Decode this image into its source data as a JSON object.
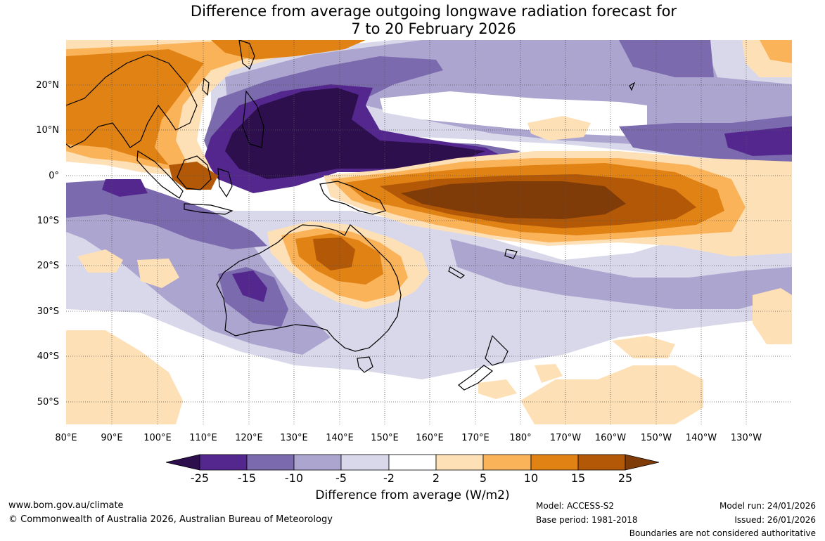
{
  "title": {
    "line1": "Difference from average outgoing longwave radiation forecast for",
    "line2": "7 to 20 February 2026"
  },
  "map": {
    "lon_labels": [
      "80°E",
      "90°E",
      "100°E",
      "110°E",
      "120°E",
      "130°E",
      "140°E",
      "150°E",
      "160°E",
      "170°E",
      "180°",
      "170°W",
      "160°W",
      "150°W",
      "140°W",
      "130°W"
    ],
    "lat_labels": [
      "20°N",
      "10°N",
      "0°",
      "10°S",
      "20°S",
      "30°S",
      "40°S",
      "50°S"
    ]
  },
  "colorbar": {
    "colors": [
      "#2d0f4e",
      "#54278f",
      "#7b6aae",
      "#aca5cf",
      "#d9d8ea",
      "#ffffff",
      "#fee0b6",
      "#fbb35a",
      "#e08214",
      "#b35806",
      "#7f3b08"
    ],
    "tick_labels": [
      "-25",
      "-15",
      "-10",
      "-5",
      "-2",
      "2",
      "5",
      "10",
      "15",
      "25"
    ],
    "title": "Difference from average (W/m2)"
  },
  "footer": {
    "website": "www.bom.gov.au/climate",
    "copyright": "© Commonwealth of Australia 2026, Australian Bureau of Meteorology",
    "model": "Model: ACCESS-S2",
    "base_period": "Base period: 1981-2018",
    "model_run": "Model run: 24/01/2026",
    "issued": "Issued: 26/01/2026",
    "disclaimer": "Boundaries are not considered authoritative"
  }
}
